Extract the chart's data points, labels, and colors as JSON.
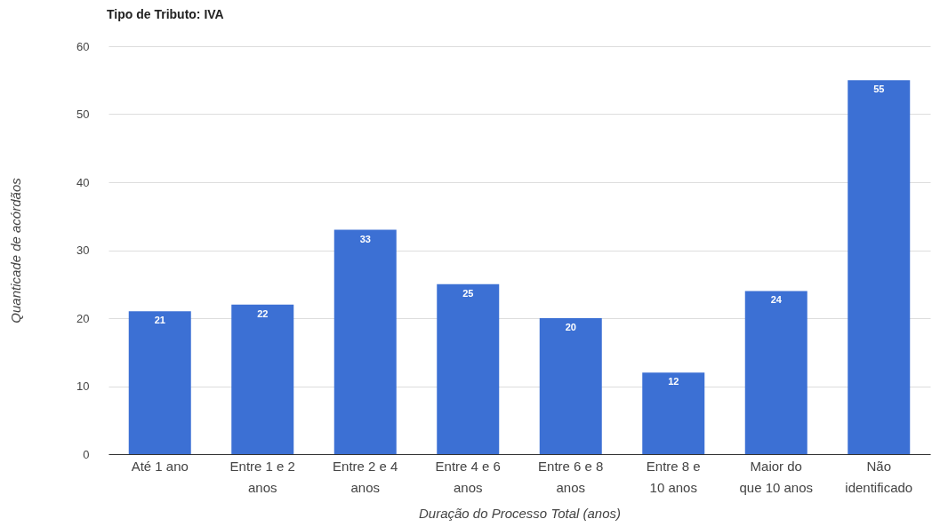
{
  "chart_data": {
    "type": "bar",
    "title": "Tipo de Tributo: IVA",
    "xlabel": "Duração do Processo Total (anos)",
    "ylabel": "Quanticade de acórdãos",
    "categories": [
      "Até 1 ano",
      "Entre   1 e 2 anos",
      "Entre   2 e 4 anos",
      "Entre   4 e 6 anos",
      "Entre   6 e 8 anos",
      "Entre   8 e 10 anos",
      "Maior do que 10 anos",
      "Não identificado"
    ],
    "values": [
      21,
      22,
      33,
      25,
      20,
      12,
      24,
      55
    ],
    "color": "#3c70d4",
    "ylim": [
      0,
      60
    ],
    "yticks": [
      0,
      10,
      20,
      30,
      40,
      50,
      60
    ],
    "grid": "y",
    "data_labels": true
  }
}
